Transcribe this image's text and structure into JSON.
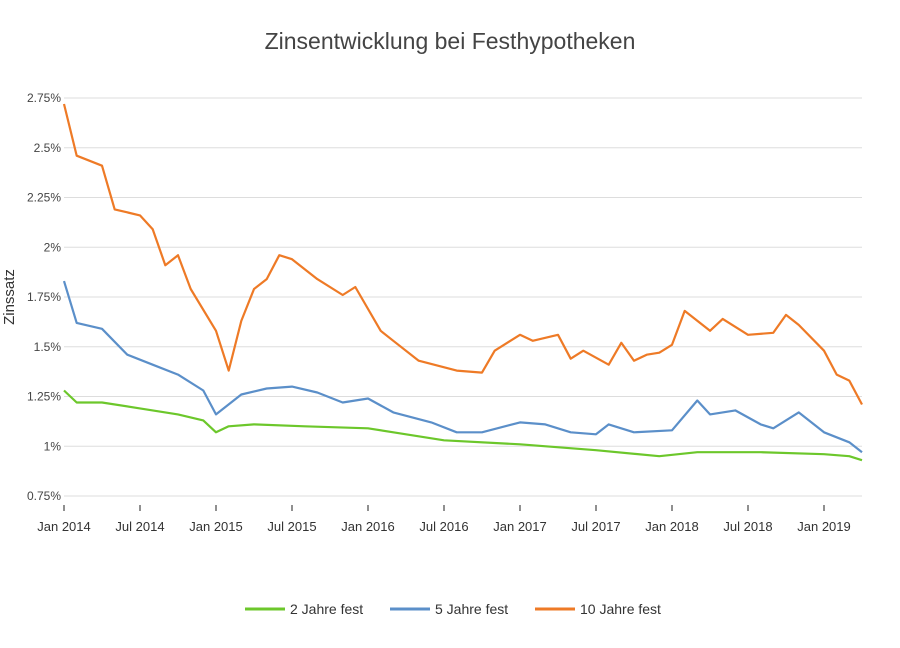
{
  "chart_data": {
    "type": "line",
    "title": "Zinsentwicklung bei Festhypotheken",
    "xlabel": "",
    "ylabel": "Zinssatz",
    "x_ticks": [
      "Jan 2014",
      "Jul 2014",
      "Jan 2015",
      "Jul 2015",
      "Jan 2016",
      "Jul 2016",
      "Jan 2017",
      "Jul 2017",
      "Jan 2018",
      "Jul 2018",
      "Jan 2019"
    ],
    "y_ticks": [
      "0.75%",
      "1%",
      "1.25%",
      "1.5%",
      "1.75%",
      "2%",
      "2.25%",
      "2.5%",
      "2.75%"
    ],
    "ylim": [
      0.75,
      2.75
    ],
    "xlim": [
      "2014-01",
      "2019-04"
    ],
    "grid": true,
    "legend_position": "bottom",
    "series": [
      {
        "name": "2 Jahre fest",
        "color": "#6cc72b",
        "points": [
          [
            "2014-01",
            1.28
          ],
          [
            "2014-02",
            1.22
          ],
          [
            "2014-04",
            1.22
          ],
          [
            "2014-07",
            1.19
          ],
          [
            "2014-10",
            1.16
          ],
          [
            "2014-12",
            1.13
          ],
          [
            "2015-01",
            1.07
          ],
          [
            "2015-02",
            1.1
          ],
          [
            "2015-04",
            1.11
          ],
          [
            "2015-08",
            1.1
          ],
          [
            "2016-01",
            1.09
          ],
          [
            "2016-03",
            1.07
          ],
          [
            "2016-07",
            1.03
          ],
          [
            "2017-01",
            1.01
          ],
          [
            "2017-07",
            0.98
          ],
          [
            "2017-12",
            0.95
          ],
          [
            "2018-03",
            0.97
          ],
          [
            "2018-08",
            0.97
          ],
          [
            "2019-01",
            0.96
          ],
          [
            "2019-03",
            0.95
          ],
          [
            "2019-04",
            0.93
          ]
        ]
      },
      {
        "name": "5 Jahre fest",
        "color": "#5b8fc9",
        "points": [
          [
            "2014-01",
            1.83
          ],
          [
            "2014-02",
            1.62
          ],
          [
            "2014-04",
            1.59
          ],
          [
            "2014-06",
            1.46
          ],
          [
            "2014-08",
            1.41
          ],
          [
            "2014-10",
            1.36
          ],
          [
            "2014-12",
            1.28
          ],
          [
            "2015-01",
            1.16
          ],
          [
            "2015-03",
            1.26
          ],
          [
            "2015-05",
            1.29
          ],
          [
            "2015-07",
            1.3
          ],
          [
            "2015-09",
            1.27
          ],
          [
            "2015-11",
            1.22
          ],
          [
            "2016-01",
            1.24
          ],
          [
            "2016-03",
            1.17
          ],
          [
            "2016-06",
            1.12
          ],
          [
            "2016-08",
            1.07
          ],
          [
            "2016-10",
            1.07
          ],
          [
            "2017-01",
            1.12
          ],
          [
            "2017-03",
            1.11
          ],
          [
            "2017-05",
            1.07
          ],
          [
            "2017-07",
            1.06
          ],
          [
            "2017-08",
            1.11
          ],
          [
            "2017-10",
            1.07
          ],
          [
            "2018-01",
            1.08
          ],
          [
            "2018-03",
            1.23
          ],
          [
            "2018-04",
            1.16
          ],
          [
            "2018-06",
            1.18
          ],
          [
            "2018-08",
            1.11
          ],
          [
            "2018-09",
            1.09
          ],
          [
            "2018-11",
            1.17
          ],
          [
            "2019-01",
            1.07
          ],
          [
            "2019-03",
            1.02
          ],
          [
            "2019-04",
            0.97
          ]
        ]
      },
      {
        "name": "10 Jahre fest",
        "color": "#ee7a26",
        "points": [
          [
            "2014-01",
            2.72
          ],
          [
            "2014-02",
            2.46
          ],
          [
            "2014-04",
            2.41
          ],
          [
            "2014-05",
            2.19
          ],
          [
            "2014-07",
            2.16
          ],
          [
            "2014-08",
            2.09
          ],
          [
            "2014-09",
            1.91
          ],
          [
            "2014-10",
            1.96
          ],
          [
            "2014-11",
            1.79
          ],
          [
            "2015-01",
            1.58
          ],
          [
            "2015-02",
            1.38
          ],
          [
            "2015-03",
            1.63
          ],
          [
            "2015-04",
            1.79
          ],
          [
            "2015-05",
            1.84
          ],
          [
            "2015-06",
            1.96
          ],
          [
            "2015-07",
            1.94
          ],
          [
            "2015-09",
            1.84
          ],
          [
            "2015-11",
            1.76
          ],
          [
            "2015-12",
            1.8
          ],
          [
            "2016-02",
            1.58
          ],
          [
            "2016-03",
            1.53
          ],
          [
            "2016-05",
            1.43
          ],
          [
            "2016-08",
            1.38
          ],
          [
            "2016-10",
            1.37
          ],
          [
            "2016-11",
            1.48
          ],
          [
            "2017-01",
            1.56
          ],
          [
            "2017-02",
            1.53
          ],
          [
            "2017-04",
            1.56
          ],
          [
            "2017-05",
            1.44
          ],
          [
            "2017-06",
            1.48
          ],
          [
            "2017-08",
            1.41
          ],
          [
            "2017-09",
            1.52
          ],
          [
            "2017-10",
            1.43
          ],
          [
            "2017-11",
            1.46
          ],
          [
            "2017-12",
            1.47
          ],
          [
            "2018-01",
            1.51
          ],
          [
            "2018-02",
            1.68
          ],
          [
            "2018-04",
            1.58
          ],
          [
            "2018-05",
            1.64
          ],
          [
            "2018-07",
            1.56
          ],
          [
            "2018-09",
            1.57
          ],
          [
            "2018-10",
            1.66
          ],
          [
            "2018-11",
            1.61
          ],
          [
            "2019-01",
            1.48
          ],
          [
            "2019-02",
            1.36
          ],
          [
            "2019-03",
            1.33
          ],
          [
            "2019-04",
            1.21
          ]
        ]
      }
    ]
  }
}
